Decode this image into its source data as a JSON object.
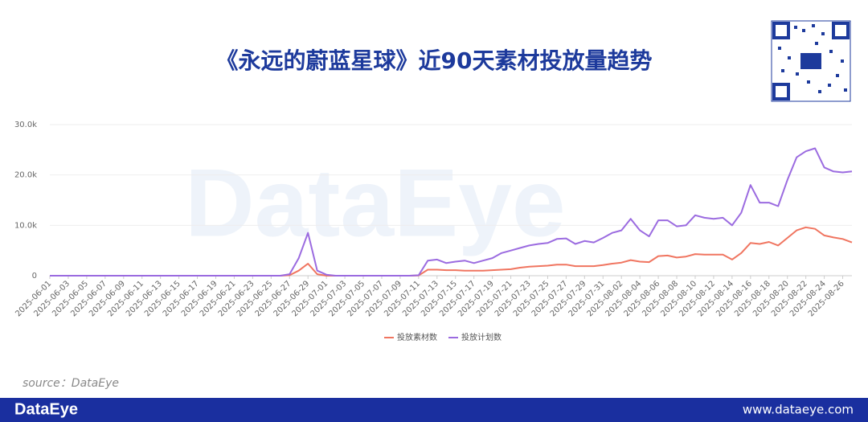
{
  "chart_data": {
    "type": "line",
    "title": "《永远的蔚蓝星球》近90天素材投放量趋势",
    "watermark": "DataEye",
    "source": "source：DataEye",
    "footer_brand": "DataEye",
    "footer_url": "www.dataeye.com",
    "categories": [
      "2025-06-01",
      "2025-06-02",
      "2025-06-03",
      "2025-06-04",
      "2025-06-05",
      "2025-06-06",
      "2025-06-07",
      "2025-06-08",
      "2025-06-09",
      "2025-06-10",
      "2025-06-11",
      "2025-06-12",
      "2025-06-13",
      "2025-06-14",
      "2025-06-15",
      "2025-06-16",
      "2025-06-17",
      "2025-06-18",
      "2025-06-19",
      "2025-06-20",
      "2025-06-21",
      "2025-06-22",
      "2025-06-23",
      "2025-06-24",
      "2025-06-25",
      "2025-06-26",
      "2025-06-27",
      "2025-06-28",
      "2025-06-29",
      "2025-06-30",
      "2025-07-01",
      "2025-07-02",
      "2025-07-03",
      "2025-07-04",
      "2025-07-05",
      "2025-07-06",
      "2025-07-07",
      "2025-07-08",
      "2025-07-09",
      "2025-07-10",
      "2025-07-11",
      "2025-07-12",
      "2025-07-13",
      "2025-07-14",
      "2025-07-15",
      "2025-07-16",
      "2025-07-17",
      "2025-07-18",
      "2025-07-19",
      "2025-07-20",
      "2025-07-21",
      "2025-07-22",
      "2025-07-23",
      "2025-07-24",
      "2025-07-25",
      "2025-07-26",
      "2025-07-27",
      "2025-07-28",
      "2025-07-29",
      "2025-07-30",
      "2025-07-31",
      "2025-08-01",
      "2025-08-02",
      "2025-08-03",
      "2025-08-04",
      "2025-08-05",
      "2025-08-06",
      "2025-08-07",
      "2025-08-08",
      "2025-08-09",
      "2025-08-10",
      "2025-08-11",
      "2025-08-12",
      "2025-08-13",
      "2025-08-14",
      "2025-08-15",
      "2025-08-16",
      "2025-08-17",
      "2025-08-18",
      "2025-08-19",
      "2025-08-20",
      "2025-08-21",
      "2025-08-22",
      "2025-08-23",
      "2025-08-24",
      "2025-08-25",
      "2025-08-26",
      "2025-08-27"
    ],
    "series": [
      {
        "name": "投放素材数",
        "color": "#f07560",
        "values": [
          0,
          0,
          0,
          0,
          0,
          0,
          0,
          0,
          0,
          0,
          0,
          0,
          0,
          0,
          0,
          0,
          0,
          0,
          0,
          0,
          0,
          0,
          0,
          0,
          0,
          0,
          100,
          1000,
          2400,
          300,
          0,
          0,
          0,
          0,
          0,
          0,
          0,
          0,
          0,
          0,
          50,
          1200,
          1200,
          1100,
          1100,
          1000,
          1000,
          1000,
          1100,
          1200,
          1300,
          1600,
          1800,
          1900,
          2000,
          2200,
          2200,
          1900,
          1900,
          1900,
          2100,
          2400,
          2600,
          3100,
          2800,
          2700,
          3900,
          4000,
          3600,
          3800,
          4300,
          4200,
          4200,
          4200,
          3200,
          4500,
          6500,
          6300,
          6700,
          6000,
          7500,
          9000,
          9600,
          9300,
          8000,
          7600,
          7300,
          6600
        ]
      },
      {
        "name": "投放计划数",
        "color": "#9b6be0",
        "values": [
          0,
          0,
          0,
          0,
          0,
          0,
          0,
          0,
          0,
          0,
          0,
          0,
          0,
          0,
          0,
          0,
          0,
          0,
          0,
          0,
          0,
          0,
          0,
          0,
          0,
          0,
          300,
          3500,
          8500,
          1000,
          200,
          0,
          0,
          0,
          0,
          0,
          0,
          0,
          0,
          0,
          100,
          3000,
          3200,
          2500,
          2800,
          3000,
          2500,
          3000,
          3500,
          4500,
          5000,
          5500,
          6000,
          6300,
          6500,
          7300,
          7400,
          6300,
          6900,
          6600,
          7500,
          8500,
          9000,
          11300,
          9000,
          7800,
          11000,
          11000,
          9800,
          10000,
          12000,
          11500,
          11300,
          11500,
          10000,
          12500,
          18000,
          14500,
          14500,
          13800,
          19000,
          23500,
          24700,
          25300,
          21500,
          20700,
          20500,
          20700
        ]
      }
    ],
    "ylim": [
      0,
      30000
    ],
    "yticks": [
      0,
      {
        "value": 10000,
        "label": "10.0k"
      },
      {
        "value": 20000,
        "label": "20.0k"
      },
      {
        "value": 30000,
        "label": "30.0k"
      }
    ],
    "grid": true
  }
}
